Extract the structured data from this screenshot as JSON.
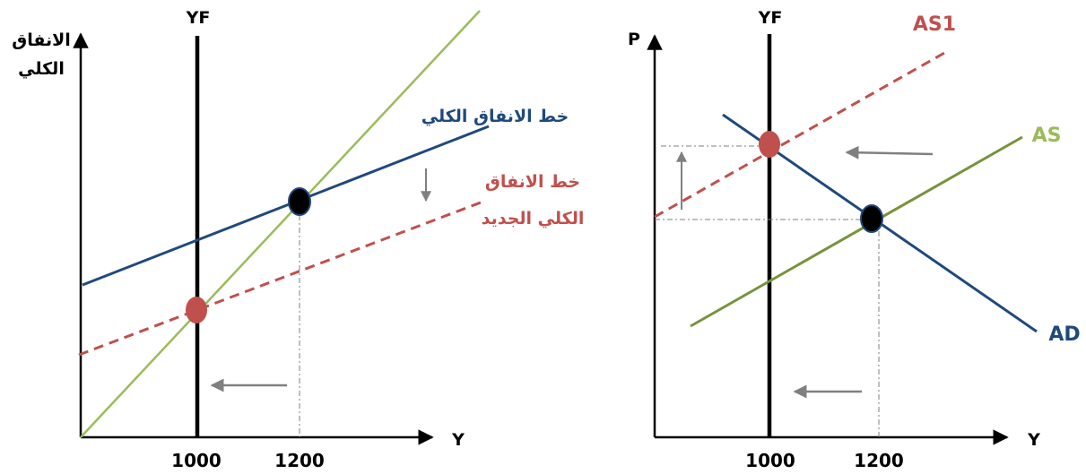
{
  "colors": {
    "axis": "#000000",
    "aggregate_expenditure": "#1f497d",
    "new_aggregate_expenditure": "#c0504d",
    "line_45": "#9bbb59",
    "as_line": "#77933c",
    "guide": "#7f7f7f",
    "arrow": "#808080"
  },
  "left_panel": {
    "y_axis_label_line1": "الانفاق",
    "y_axis_label_line2": "الكلي",
    "x_axis_label": "Y",
    "yf_label": "YF",
    "ae_label": "خط الانفاق الكلي",
    "new_ae_label_line1": "خط الانفاق",
    "new_ae_label_line2": "الكلي الجديد",
    "tick_1000": "1000",
    "tick_1200": "1200"
  },
  "right_panel": {
    "y_axis_label": "P",
    "x_axis_label": "Y",
    "yf_label": "YF",
    "as1_label": "AS1",
    "as_label": "AS",
    "ad_label": "AD",
    "tick_1000": "1000",
    "tick_1200": "1200"
  }
}
